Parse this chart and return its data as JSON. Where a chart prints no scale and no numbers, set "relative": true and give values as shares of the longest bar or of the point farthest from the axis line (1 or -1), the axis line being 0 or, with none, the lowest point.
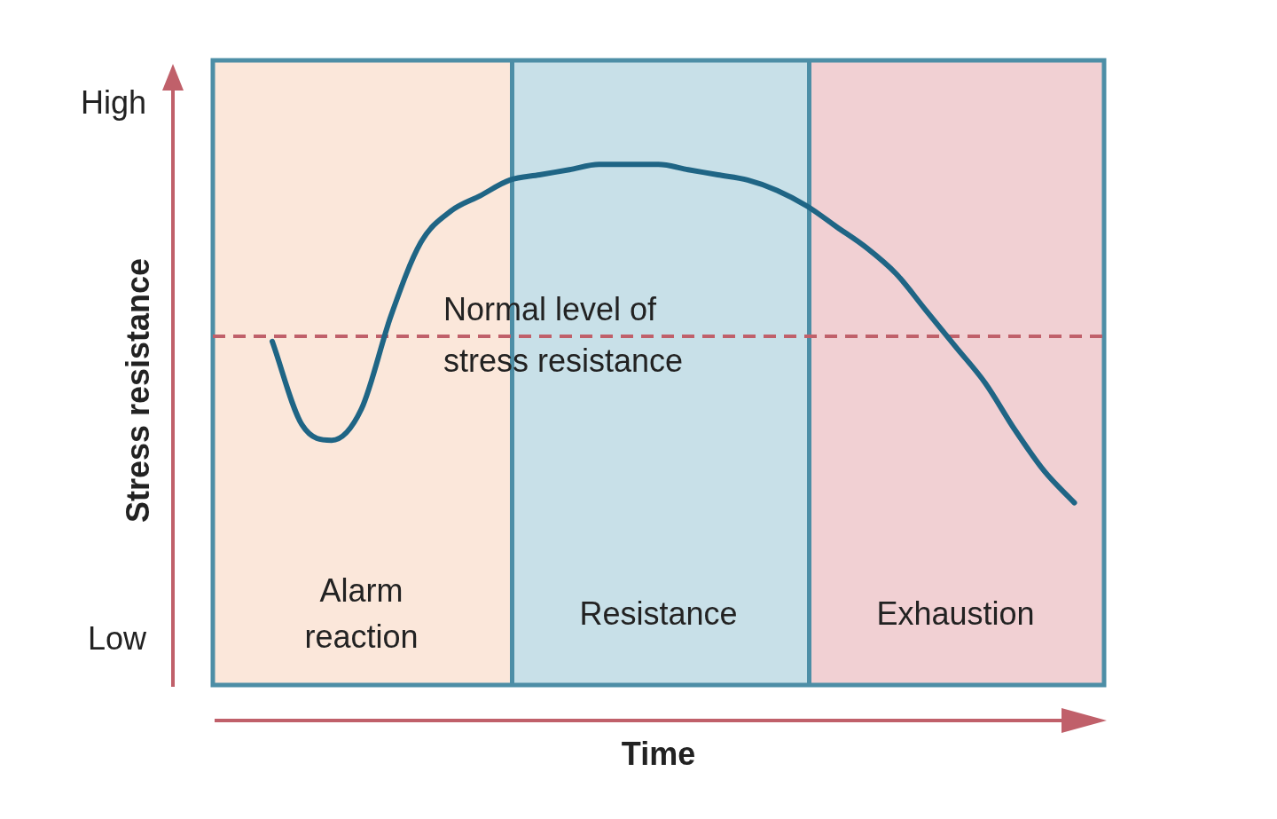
{
  "chart_data": {
    "type": "line",
    "relative": true,
    "xlabel": "Time",
    "ylabel": "Stress resistance",
    "annotations": [
      "High",
      "Low",
      "Alarm\nreaction",
      "Resistance",
      "Exhaustion"
    ],
    "categories": [
      null,
      null,
      null,
      null,
      null,
      null,
      null,
      null,
      null,
      null,
      null,
      null,
      null,
      null,
      null,
      null,
      null,
      null,
      null,
      null,
      null,
      null,
      null,
      null,
      null,
      null,
      null,
      null,
      null,
      null,
      null
    ],
    "series": [
      {
        "color": "#1f6585",
        "values": [
          null,
          null,
          0.66,
          0.5,
          0.47,
          0.53,
          0.71,
          0.85,
          0.91,
          0.94,
          0.97,
          0.98,
          0.99,
          1.0,
          1.0,
          1.0,
          0.99,
          0.98,
          0.97,
          0.95,
          0.92,
          0.88,
          0.84,
          0.79,
          0.72,
          0.65,
          0.58,
          0.49,
          0.41,
          0.35,
          null
        ]
      }
    ],
    "ref_lines": [
      {
        "axis": "y",
        "value": 0.67,
        "label": "Normal level of\nstress resistance",
        "color": "#c0606a",
        "line_style": "dashed"
      }
    ],
    "marker": "none",
    "line_style": "solid",
    "legend": false
  }
}
